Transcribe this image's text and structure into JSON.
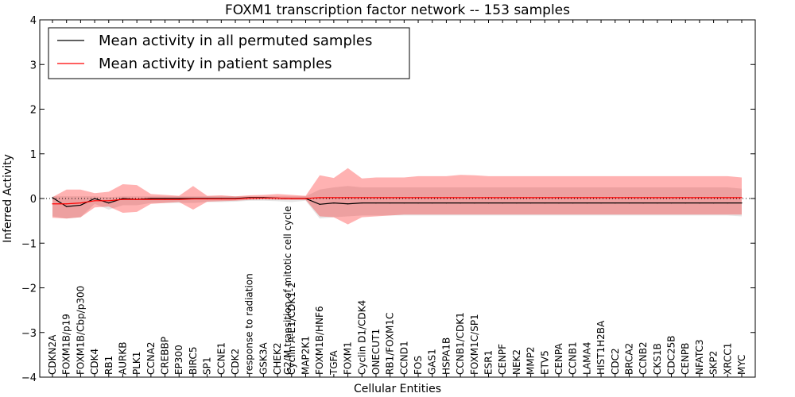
{
  "chart_data": {
    "type": "line",
    "title": "FOXM1 transcription factor network -- 153 samples",
    "xlabel": "Cellular Entities",
    "ylabel": "Inferred Activity",
    "ylim": [
      -4,
      4
    ],
    "yticks": [
      -4,
      -3,
      -2,
      -1,
      0,
      1,
      2,
      3,
      4
    ],
    "ytick_labels": [
      "−4",
      "−3",
      "−2",
      "−1",
      "0",
      "1",
      "2",
      "3",
      "4"
    ],
    "legend_position": "top-left",
    "annotation": "G2/M transition of mitotic cell cycle",
    "annotation_category_index": 16,
    "categories": [
      "CDKN2A",
      "FOXM1B/p19",
      "FOXM1B/Cbp/p300",
      "CDK4",
      "RB1",
      "AURKB",
      "PLK1",
      "CCNA2",
      "CREBBP",
      "EP300",
      "BIRC5",
      "SP1",
      "CCNE1",
      "CDK2",
      "response to radiation",
      "GSK3A",
      "CHEK2",
      "Cyclin A-E1/CDK1-2",
      "MAP2K1",
      "FOXM1B/HNF6",
      "TGFA",
      "FOXM1",
      "Cyclin D1/CDK4",
      "ONECUT1",
      "RB1/FOXM1C",
      "CCND1",
      "FOS",
      "GAS1",
      "HSPA1B",
      "CCNB1/CDK1",
      "FOXM1C/SP1",
      "ESR1",
      "CENPF",
      "NEK2",
      "MMP2",
      "ETV5",
      "CENPA",
      "CCNB1",
      "LAMA4",
      "HIST1H2BA",
      "CDC2",
      "BRCA2",
      "CCNB2",
      "CKS1B",
      "CDC25B",
      "CENPB",
      "NFATC3",
      "SKP2",
      "XRCC1",
      "MYC"
    ],
    "series": [
      {
        "name": "Mean activity in all permuted samples",
        "color": "#000000",
        "values": [
          0.02,
          -0.18,
          -0.15,
          0.0,
          -0.1,
          0.0,
          -0.02,
          0.0,
          0.0,
          0.0,
          0.0,
          0.0,
          0.0,
          0.0,
          0.02,
          0.02,
          0.01,
          0.0,
          0.0,
          -0.13,
          -0.1,
          -0.12,
          -0.1,
          -0.1,
          -0.1,
          -0.1,
          -0.1,
          -0.1,
          -0.1,
          -0.1,
          -0.1,
          -0.1,
          -0.1,
          -0.1,
          -0.1,
          -0.1,
          -0.1,
          -0.1,
          -0.1,
          -0.1,
          -0.1,
          -0.1,
          -0.1,
          -0.1,
          -0.1,
          -0.1,
          -0.1,
          -0.1,
          -0.1,
          -0.1
        ],
        "lower": [
          -0.4,
          -0.45,
          -0.42,
          -0.12,
          -0.25,
          -0.15,
          -0.15,
          -0.1,
          -0.1,
          -0.1,
          -0.1,
          -0.08,
          -0.08,
          -0.07,
          -0.05,
          -0.05,
          -0.06,
          -0.08,
          -0.05,
          -0.45,
          -0.42,
          -0.4,
          -0.38,
          -0.38,
          -0.38,
          -0.38,
          -0.38,
          -0.38,
          -0.38,
          -0.38,
          -0.38,
          -0.38,
          -0.38,
          -0.38,
          -0.38,
          -0.38,
          -0.38,
          -0.38,
          -0.38,
          -0.38,
          -0.38,
          -0.38,
          -0.38,
          -0.38,
          -0.38,
          -0.38,
          -0.38,
          -0.38,
          -0.38,
          -0.4
        ],
        "upper": [
          0.05,
          0.05,
          0.05,
          0.05,
          0.03,
          0.05,
          0.05,
          0.05,
          0.05,
          0.05,
          0.05,
          0.05,
          0.05,
          0.05,
          0.05,
          0.05,
          0.05,
          0.05,
          0.05,
          0.2,
          0.25,
          0.28,
          0.25,
          0.25,
          0.25,
          0.25,
          0.25,
          0.25,
          0.25,
          0.25,
          0.25,
          0.25,
          0.25,
          0.25,
          0.25,
          0.25,
          0.25,
          0.25,
          0.25,
          0.25,
          0.25,
          0.25,
          0.25,
          0.25,
          0.25,
          0.25,
          0.25,
          0.25,
          0.25,
          0.22
        ]
      },
      {
        "name": "Mean activity in patient samples",
        "color": "#ff0000",
        "values": [
          -0.12,
          -0.12,
          -0.1,
          -0.05,
          -0.05,
          -0.02,
          -0.02,
          -0.02,
          -0.02,
          -0.02,
          -0.01,
          -0.01,
          -0.01,
          -0.01,
          0.01,
          0.01,
          0.01,
          0.0,
          0.0,
          0.02,
          0.02,
          0.02,
          0.02,
          0.02,
          0.02,
          0.02,
          0.02,
          0.02,
          0.02,
          0.02,
          0.02,
          0.02,
          0.02,
          0.02,
          0.02,
          0.02,
          0.02,
          0.02,
          0.02,
          0.02,
          0.02,
          0.02,
          0.02,
          0.02,
          0.02,
          0.02,
          0.02,
          0.02,
          0.02,
          0.02
        ],
        "lower": [
          -0.43,
          -0.45,
          -0.42,
          -0.2,
          -0.18,
          -0.32,
          -0.3,
          -0.12,
          -0.1,
          -0.08,
          -0.25,
          -0.07,
          -0.06,
          -0.05,
          -0.03,
          -0.02,
          -0.03,
          -0.03,
          -0.03,
          -0.4,
          -0.42,
          -0.58,
          -0.42,
          -0.4,
          -0.38,
          -0.36,
          -0.36,
          -0.36,
          -0.36,
          -0.36,
          -0.36,
          -0.36,
          -0.36,
          -0.36,
          -0.36,
          -0.36,
          -0.36,
          -0.36,
          -0.36,
          -0.36,
          -0.36,
          -0.36,
          -0.36,
          -0.36,
          -0.36,
          -0.36,
          -0.36,
          -0.36,
          -0.36,
          -0.36
        ],
        "upper": [
          0.03,
          0.2,
          0.2,
          0.12,
          0.15,
          0.32,
          0.3,
          0.1,
          0.08,
          0.06,
          0.28,
          0.06,
          0.07,
          0.05,
          0.07,
          0.08,
          0.1,
          0.08,
          0.06,
          0.52,
          0.46,
          0.68,
          0.45,
          0.47,
          0.47,
          0.47,
          0.5,
          0.5,
          0.5,
          0.53,
          0.52,
          0.5,
          0.5,
          0.5,
          0.5,
          0.5,
          0.5,
          0.5,
          0.5,
          0.5,
          0.5,
          0.5,
          0.5,
          0.5,
          0.5,
          0.5,
          0.5,
          0.5,
          0.5,
          0.47
        ]
      }
    ],
    "zero_line": "dotted"
  }
}
